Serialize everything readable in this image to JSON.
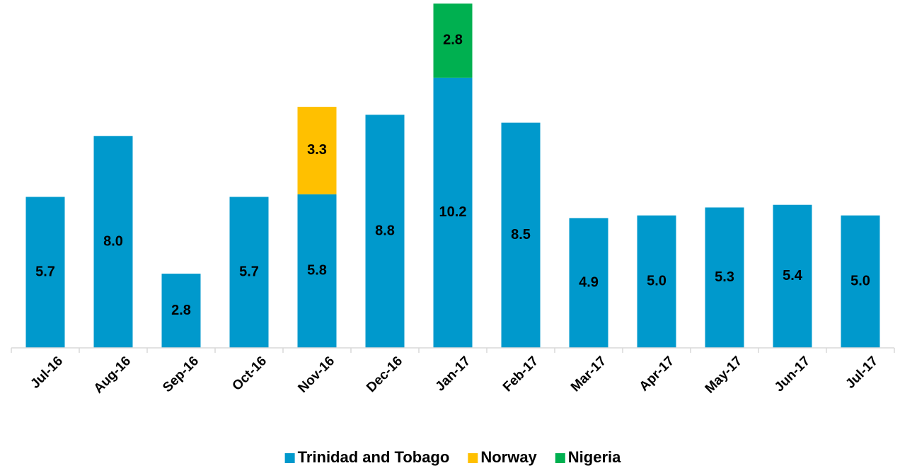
{
  "chart_data": {
    "type": "stacked_bar",
    "categories": [
      "Jul-16",
      "Aug-16",
      "Sep-16",
      "Oct-16",
      "Nov-16",
      "Dec-16",
      "Jan-17",
      "Feb-17",
      "Mar-17",
      "Apr-17",
      "May-17",
      "Jun-17",
      "Jul-17"
    ],
    "series": [
      {
        "name": "Trinidad and Tobago",
        "color": "#0099cc",
        "values": [
          5.7,
          8.0,
          2.8,
          5.7,
          5.8,
          8.8,
          10.2,
          8.5,
          4.9,
          5.0,
          5.3,
          5.4,
          5.0
        ],
        "value_labels": [
          "5.7",
          "8.0",
          "2.8",
          "5.7",
          "5.8",
          "8.8",
          "10.2",
          "8.5",
          "4.9",
          "5.0",
          "5.3",
          "5.4",
          "5.0"
        ]
      },
      {
        "name": "Norway",
        "color": "#ffc000",
        "values": [
          null,
          null,
          null,
          null,
          3.3,
          null,
          null,
          null,
          null,
          null,
          null,
          null,
          null
        ],
        "value_labels": [
          null,
          null,
          null,
          null,
          "3.3",
          null,
          null,
          null,
          null,
          null,
          null,
          null,
          null
        ]
      },
      {
        "name": "Nigeria",
        "color": "#00b050",
        "values": [
          null,
          null,
          null,
          null,
          null,
          null,
          2.8,
          null,
          null,
          null,
          null,
          null,
          null
        ],
        "value_labels": [
          null,
          null,
          null,
          null,
          null,
          null,
          "2.8",
          null,
          null,
          null,
          null,
          null,
          null
        ]
      }
    ],
    "legend": "bottom"
  }
}
